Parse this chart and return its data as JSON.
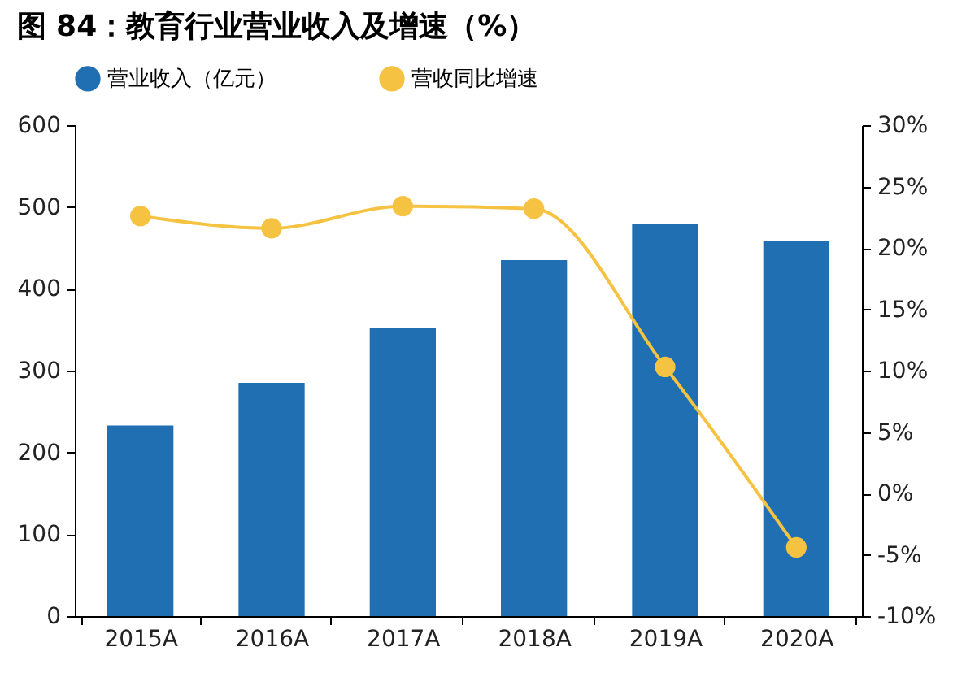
{
  "chart_data": {
    "type": "bar",
    "title": "图 84：教育行业营业收入及增速（%）",
    "categories": [
      "2015A",
      "2016A",
      "2017A",
      "2018A",
      "2019A",
      "2020A"
    ],
    "series": [
      {
        "name": "营业收入（亿元）",
        "color": "#1f6fb2",
        "values": [
          233,
          285,
          352,
          435,
          479,
          459
        ]
      },
      {
        "name": "营收同比增速",
        "type": "line",
        "axis": "y2",
        "color": "#f5c242",
        "values": [
          22.6,
          21.6,
          23.4,
          23.2,
          10.3,
          -4.4
        ]
      }
    ],
    "ylim": [
      0,
      600
    ],
    "yticks": [
      0,
      100,
      200,
      300,
      400,
      500,
      600
    ],
    "y2lim": [
      -10,
      30
    ],
    "y2ticks": [
      {
        "value": -10,
        "label": "-10%"
      },
      {
        "value": -5,
        "label": "-5%"
      },
      {
        "value": 0,
        "label": "0%"
      },
      {
        "value": 5,
        "label": "5%"
      },
      {
        "value": 10,
        "label": "10%"
      },
      {
        "value": 15,
        "label": "15%"
      },
      {
        "value": 20,
        "label": "20%"
      },
      {
        "value": 25,
        "label": "25%"
      },
      {
        "value": 30,
        "label": "30%"
      }
    ],
    "grid": false,
    "legend": "top",
    "marker": "circle",
    "line_style": "solid"
  }
}
